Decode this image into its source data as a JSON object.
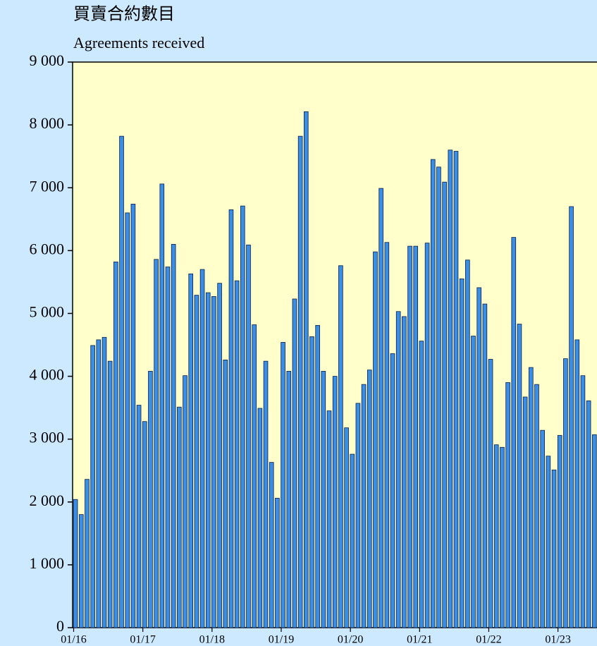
{
  "chart_data": {
    "type": "bar",
    "title": "買賣合約數目",
    "subtitle": "Agreements received",
    "categories": [
      "01/16",
      null,
      null,
      null,
      null,
      null,
      null,
      null,
      null,
      null,
      null,
      null,
      "01/17",
      null,
      null,
      null,
      null,
      null,
      null,
      null,
      null,
      null,
      null,
      null,
      "01/18",
      null,
      null,
      null,
      null,
      null,
      null,
      null,
      null,
      null,
      null,
      null,
      "01/19",
      null,
      null,
      null,
      null,
      null,
      null,
      null,
      null,
      null,
      null,
      null,
      "01/20",
      null,
      null,
      null,
      null,
      null,
      null,
      null,
      null,
      null,
      null,
      null,
      "01/21",
      null,
      null,
      null,
      null,
      null,
      null,
      null,
      null,
      null,
      null,
      null,
      "01/22",
      null,
      null,
      null,
      null,
      null,
      null,
      null,
      null,
      null,
      null,
      null,
      "01/23",
      null,
      null,
      null,
      null,
      null,
      null
    ],
    "values": [
      2040,
      1800,
      2360,
      4490,
      4580,
      4620,
      4240,
      5820,
      7820,
      6600,
      6740,
      3540,
      3280,
      4080,
      5860,
      7060,
      5740,
      6100,
      3510,
      4010,
      5630,
      5290,
      5700,
      5330,
      5270,
      5480,
      4260,
      6650,
      5520,
      6710,
      6090,
      4820,
      3490,
      4240,
      2630,
      2060,
      4540,
      4080,
      5230,
      7820,
      8210,
      4630,
      4810,
      4080,
      3450,
      4000,
      5760,
      3180,
      2760,
      3570,
      3870,
      4100,
      5980,
      6990,
      6130,
      4360,
      5030,
      4950,
      6070,
      6070,
      4560,
      6120,
      7450,
      7330,
      7090,
      7600,
      7580,
      5550,
      5850,
      4640,
      5410,
      5150,
      4270,
      2910,
      2870,
      3900,
      6210,
      4830,
      3670,
      4140,
      3870,
      3140,
      2730,
      2510,
      3060,
      4280,
      6700,
      4580,
      4010,
      3610,
      3070
    ],
    "color": "#3a8ee6",
    "ylim": [
      0,
      9000
    ],
    "yticks": [
      0,
      {
        "value": 1000,
        "label": "1 000"
      },
      {
        "value": 2000,
        "label": "2 000"
      },
      {
        "value": 3000,
        "label": "3 000"
      },
      {
        "value": 4000,
        "label": "4 000"
      },
      {
        "value": 5000,
        "label": "5 000"
      },
      {
        "value": 6000,
        "label": "6 000"
      },
      {
        "value": 7000,
        "label": "7 000"
      },
      {
        "value": 8000,
        "label": "8 000"
      },
      {
        "value": 9000,
        "label": "9 000"
      }
    ]
  }
}
